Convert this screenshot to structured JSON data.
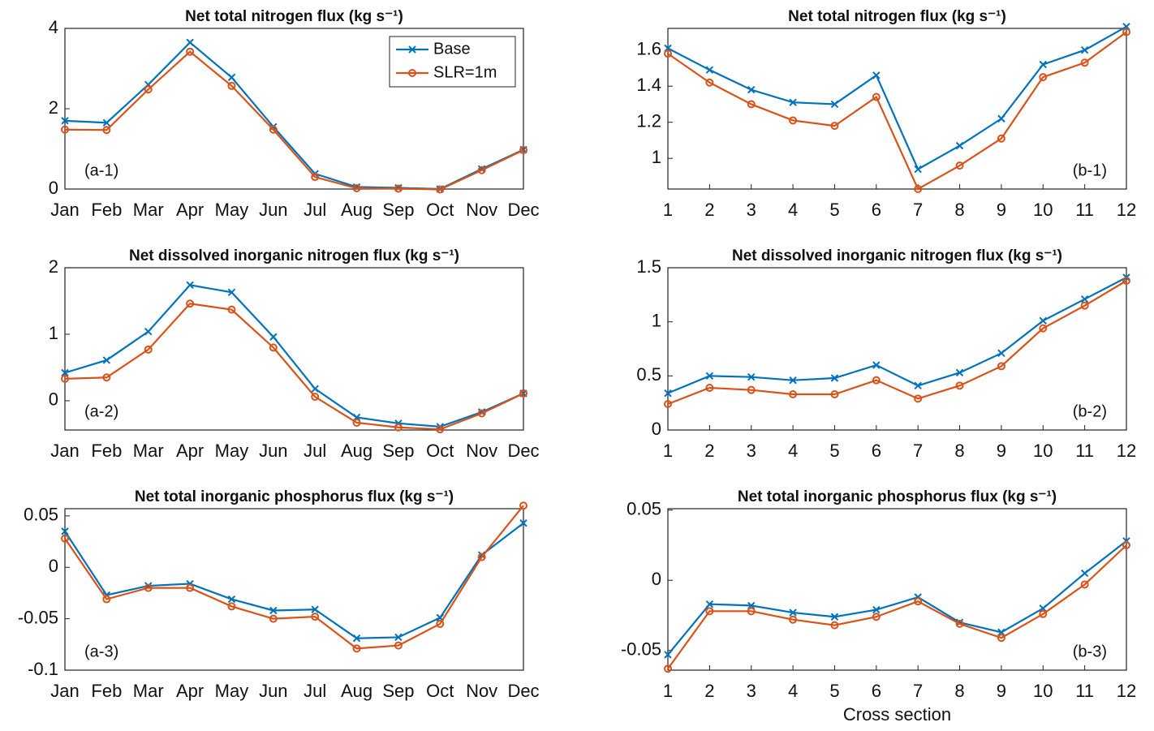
{
  "chart_data": [
    {
      "type": "line",
      "title": "Net total nitrogen flux (kg s⁻¹)",
      "annotation": "(a-1)",
      "categories": [
        "Jan",
        "Feb",
        "Mar",
        "Apr",
        "May",
        "Jun",
        "Jul",
        "Aug",
        "Sep",
        "Oct",
        "Nov",
        "Dec"
      ],
      "ylim": [
        0,
        4
      ],
      "yticks": [
        0,
        2,
        4
      ],
      "legend": "upper right",
      "series": [
        {
          "name": "Base",
          "color": "#0072BD",
          "marker": "x",
          "values": [
            1.7,
            1.65,
            2.6,
            3.65,
            2.78,
            1.55,
            0.38,
            0.05,
            0.03,
            0.0,
            0.5,
            0.98
          ]
        },
        {
          "name": "SLR=1m",
          "color": "#D95319",
          "marker": "o",
          "values": [
            1.48,
            1.47,
            2.48,
            3.42,
            2.57,
            1.48,
            0.3,
            0.02,
            0.01,
            -0.01,
            0.47,
            0.97
          ]
        }
      ]
    },
    {
      "type": "line",
      "title": "Net total nitrogen flux (kg s⁻¹)",
      "annotation": "(b-1)",
      "x": [
        1,
        2,
        3,
        4,
        5,
        6,
        7,
        8,
        9,
        10,
        11,
        12
      ],
      "xlim": [
        1,
        12
      ],
      "xticks": [
        1,
        2,
        3,
        4,
        5,
        6,
        7,
        8,
        9,
        10,
        11,
        12
      ],
      "ylim": [
        0.83,
        1.72
      ],
      "yticks": [
        1,
        1.2,
        1.4,
        1.6
      ],
      "series": [
        {
          "name": "Base",
          "color": "#0072BD",
          "marker": "x",
          "values": [
            1.61,
            1.49,
            1.38,
            1.31,
            1.3,
            1.46,
            0.94,
            1.07,
            1.22,
            1.52,
            1.6,
            1.73
          ]
        },
        {
          "name": "SLR=1m",
          "color": "#D95319",
          "marker": "o",
          "values": [
            1.58,
            1.42,
            1.3,
            1.21,
            1.18,
            1.34,
            0.83,
            0.96,
            1.11,
            1.45,
            1.53,
            1.7
          ]
        }
      ]
    },
    {
      "type": "line",
      "title": "Net dissolved inorganic nitrogen flux (kg s⁻¹)",
      "annotation": "(a-2)",
      "categories": [
        "Jan",
        "Feb",
        "Mar",
        "Apr",
        "May",
        "Jun",
        "Jul",
        "Aug",
        "Sep",
        "Oct",
        "Nov",
        "Dec"
      ],
      "ylim": [
        -0.44,
        2
      ],
      "yticks": [
        0,
        1,
        2
      ],
      "series": [
        {
          "name": "Base",
          "color": "#0072BD",
          "marker": "x",
          "values": [
            0.42,
            0.61,
            1.04,
            1.74,
            1.63,
            0.96,
            0.18,
            -0.25,
            -0.34,
            -0.39,
            -0.17,
            0.11
          ]
        },
        {
          "name": "SLR=1m",
          "color": "#D95319",
          "marker": "o",
          "values": [
            0.33,
            0.35,
            0.77,
            1.46,
            1.37,
            0.8,
            0.06,
            -0.33,
            -0.4,
            -0.43,
            -0.19,
            0.11
          ]
        }
      ]
    },
    {
      "type": "line",
      "title": "Net dissolved inorganic nitrogen flux (kg s⁻¹)",
      "annotation": "(b-2)",
      "x": [
        1,
        2,
        3,
        4,
        5,
        6,
        7,
        8,
        9,
        10,
        11,
        12
      ],
      "xlim": [
        1,
        12
      ],
      "xticks": [
        1,
        2,
        3,
        4,
        5,
        6,
        7,
        8,
        9,
        10,
        11,
        12
      ],
      "ylim": [
        0,
        1.5
      ],
      "yticks": [
        0,
        0.5,
        1,
        1.5
      ],
      "series": [
        {
          "name": "Base",
          "color": "#0072BD",
          "marker": "x",
          "values": [
            0.34,
            0.5,
            0.49,
            0.46,
            0.48,
            0.6,
            0.41,
            0.53,
            0.71,
            1.01,
            1.21,
            1.41
          ]
        },
        {
          "name": "SLR=1m",
          "color": "#D95319",
          "marker": "o",
          "values": [
            0.24,
            0.39,
            0.37,
            0.33,
            0.33,
            0.46,
            0.29,
            0.41,
            0.59,
            0.94,
            1.15,
            1.38
          ]
        }
      ]
    },
    {
      "type": "line",
      "title": "Net total inorganic phosphorus flux (kg s⁻¹)",
      "annotation": "(a-3)",
      "categories": [
        "Jan",
        "Feb",
        "Mar",
        "Apr",
        "May",
        "Jun",
        "Jul",
        "Aug",
        "Sep",
        "Oct",
        "Nov",
        "Dec"
      ],
      "ylim": [
        -0.1,
        0.057
      ],
      "yticks": [
        -0.1,
        -0.05,
        0,
        0.05
      ],
      "series": [
        {
          "name": "Base",
          "color": "#0072BD",
          "marker": "x",
          "values": [
            0.035,
            -0.027,
            -0.018,
            -0.016,
            -0.031,
            -0.042,
            -0.041,
            -0.069,
            -0.068,
            -0.049,
            0.012,
            0.043
          ]
        },
        {
          "name": "SLR=1m",
          "color": "#D95319",
          "marker": "o",
          "values": [
            0.028,
            -0.031,
            -0.02,
            -0.02,
            -0.038,
            -0.05,
            -0.048,
            -0.079,
            -0.076,
            -0.055,
            0.01,
            0.06
          ]
        }
      ]
    },
    {
      "type": "line",
      "title": "Net total inorganic phosphorus flux (kg s⁻¹)",
      "annotation": "(b-3)",
      "xlabel": "Cross section",
      "x": [
        1,
        2,
        3,
        4,
        5,
        6,
        7,
        8,
        9,
        10,
        11,
        12
      ],
      "xlim": [
        1,
        12
      ],
      "xticks": [
        1,
        2,
        3,
        4,
        5,
        6,
        7,
        8,
        9,
        10,
        11,
        12
      ],
      "ylim": [
        -0.064,
        0.051
      ],
      "yticks": [
        -0.05,
        0,
        0.05
      ],
      "series": [
        {
          "name": "Base",
          "color": "#0072BD",
          "marker": "x",
          "values": [
            -0.053,
            -0.017,
            -0.018,
            -0.023,
            -0.026,
            -0.021,
            -0.012,
            -0.03,
            -0.037,
            -0.02,
            0.005,
            0.028
          ]
        },
        {
          "name": "SLR=1m",
          "color": "#D95319",
          "marker": "o",
          "values": [
            -0.063,
            -0.022,
            -0.022,
            -0.028,
            -0.032,
            -0.026,
            -0.015,
            -0.031,
            -0.041,
            -0.024,
            -0.003,
            0.025
          ]
        }
      ]
    }
  ]
}
